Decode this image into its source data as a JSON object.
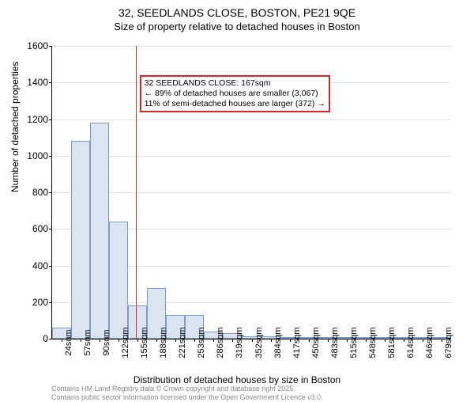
{
  "title_main": "32, SEEDLANDS CLOSE, BOSTON, PE21 9QE",
  "title_sub": "Size of property relative to detached houses in Boston",
  "y_axis_label": "Number of detached properties",
  "x_axis_label": "Distribution of detached houses by size in Boston",
  "footer_line1": "Contains HM Land Registry data © Crown copyright and database right 2025.",
  "footer_line2": "Contains public sector information licensed under the Open Government Licence v3.0.",
  "chart": {
    "type": "histogram",
    "ylim": [
      0,
      1600
    ],
    "ytick_step": 200,
    "yticks": [
      0,
      200,
      400,
      600,
      800,
      1000,
      1200,
      1400,
      1600
    ],
    "grid_color": "#e0e0e0",
    "bar_fill": "#dbe5f1",
    "bar_border": "#7a9bc4",
    "ref_line_color": "#d62728",
    "annotation_border": "#d62728",
    "background_color": "#ffffff",
    "text_color": "#000000",
    "bars": [
      {
        "label": "24sqm",
        "value": 60
      },
      {
        "label": "57sqm",
        "value": 1080
      },
      {
        "label": "90sqm",
        "value": 1180
      },
      {
        "label": "122sqm",
        "value": 640
      },
      {
        "label": "155sqm",
        "value": 180
      },
      {
        "label": "188sqm",
        "value": 275
      },
      {
        "label": "221sqm",
        "value": 130
      },
      {
        "label": "253sqm",
        "value": 130
      },
      {
        "label": "286sqm",
        "value": 40
      },
      {
        "label": "319sqm",
        "value": 30
      },
      {
        "label": "352sqm",
        "value": 15
      },
      {
        "label": "384sqm",
        "value": 12
      },
      {
        "label": "417sqm",
        "value": 5
      },
      {
        "label": "450sqm",
        "value": 5
      },
      {
        "label": "483sqm",
        "value": 3
      },
      {
        "label": "515sqm",
        "value": 2
      },
      {
        "label": "548sqm",
        "value": 2
      },
      {
        "label": "581sqm",
        "value": 1
      },
      {
        "label": "614sqm",
        "value": 1
      },
      {
        "label": "646sqm",
        "value": 1
      },
      {
        "label": "679sqm",
        "value": 1
      }
    ],
    "ref_line_bar_index": 4.4,
    "annotation": {
      "line1": "32 SEEDLANDS CLOSE: 167sqm",
      "line2": "← 89% of detached houses are smaller (3,067)",
      "line3": "11% of semi-detached houses are larger (372) →",
      "left_bar_index": 4.6,
      "value_pos": 1440
    }
  }
}
